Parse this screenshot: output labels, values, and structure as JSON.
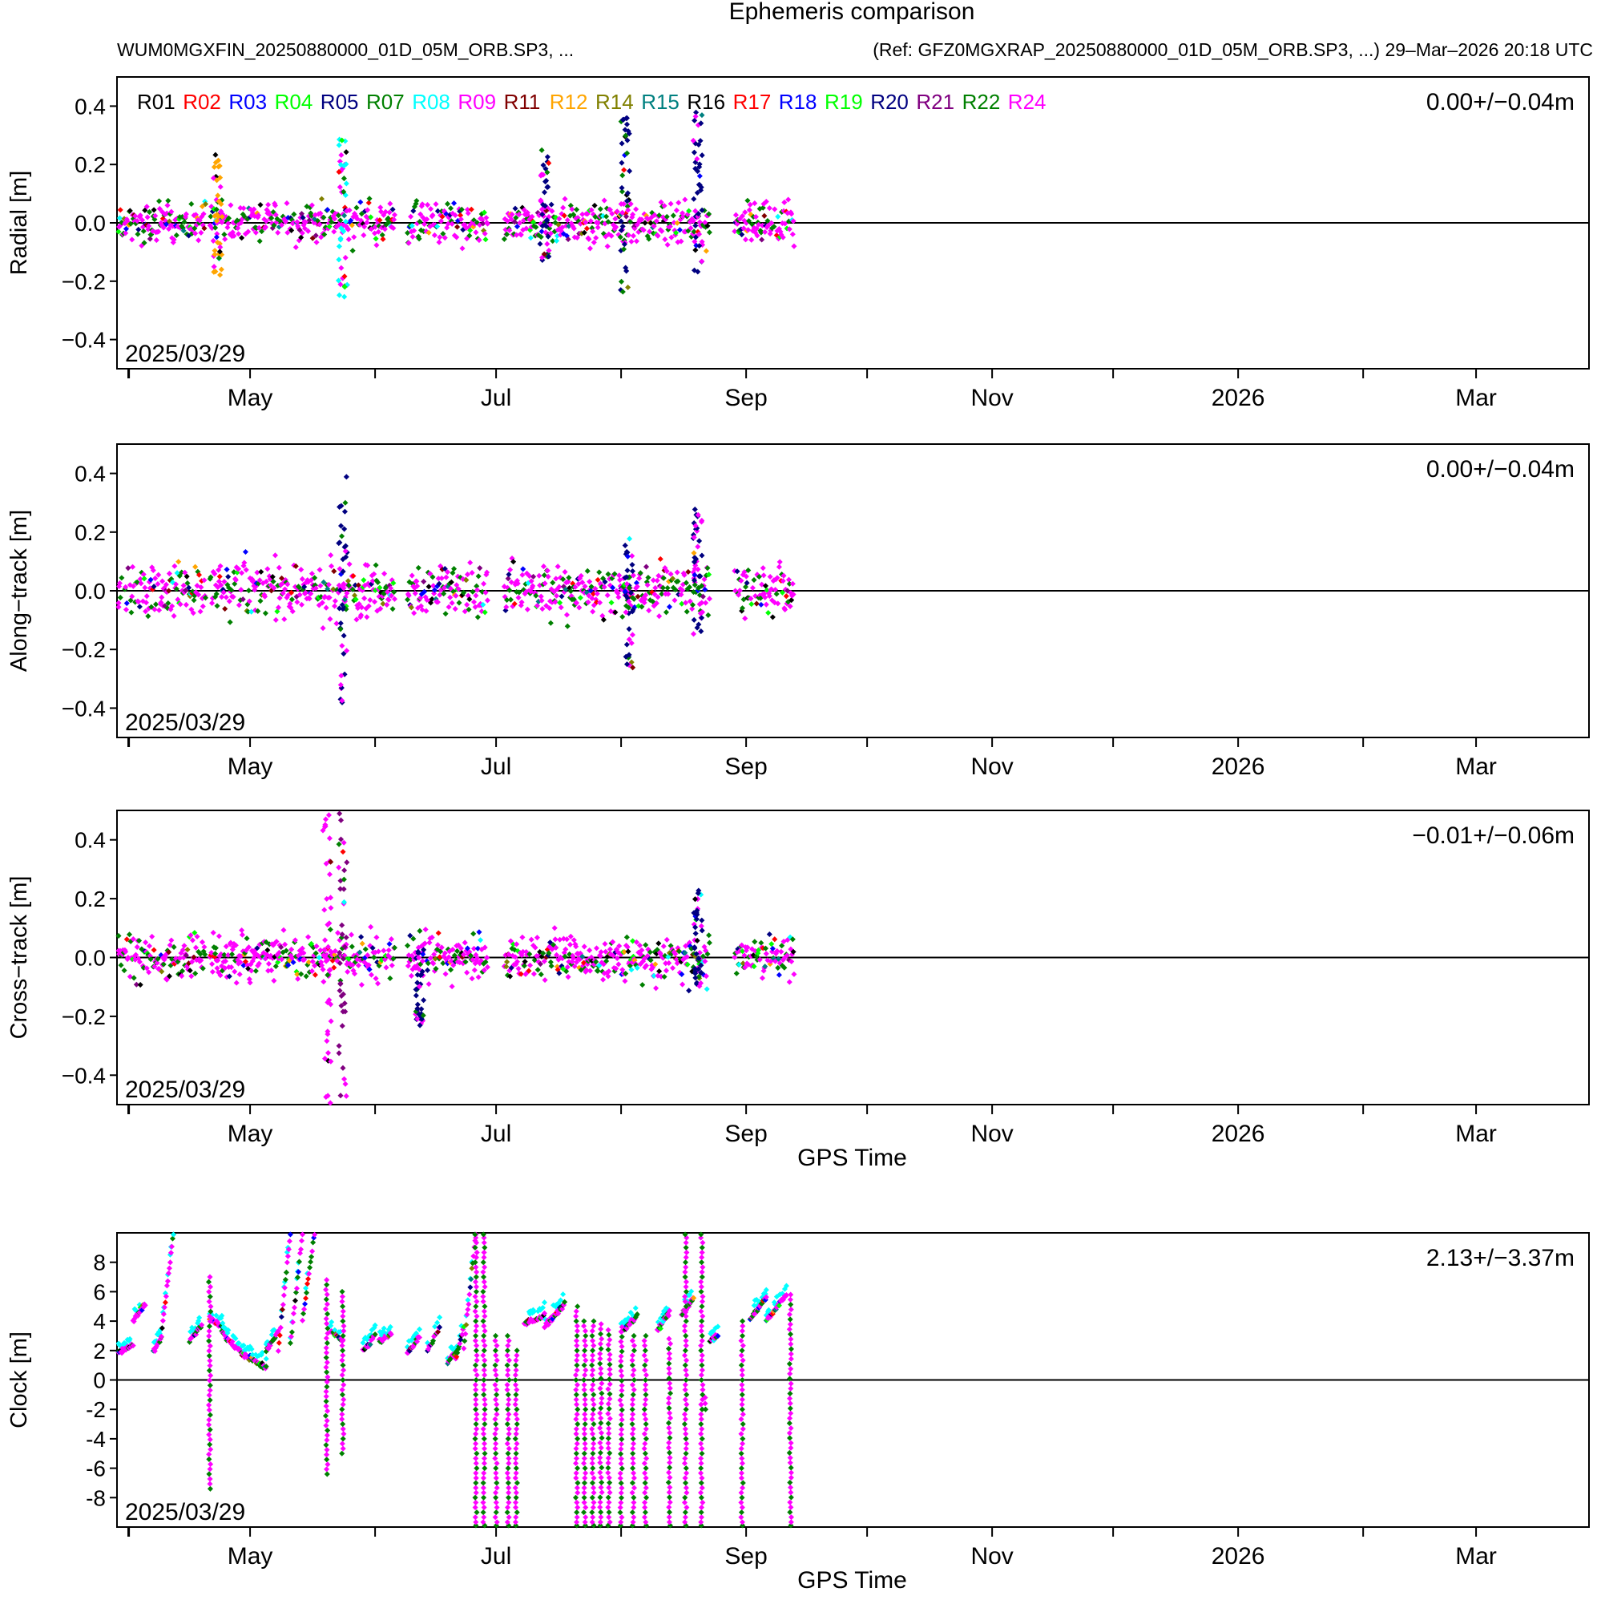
{
  "title": "Ephemeris comparison",
  "header": {
    "left": "WUM0MGXFIN_20250880000_01D_05M_ORB.SP3, ...",
    "right": "(Ref: GFZ0MGXRAP_20250880000_01D_05M_ORB.SP3, ...) 29–Mar–2026 20:18 UTC"
  },
  "legend": [
    {
      "name": "R01",
      "color": "#000000"
    },
    {
      "name": "R02",
      "color": "#ff0000"
    },
    {
      "name": "R03",
      "color": "#0000ff"
    },
    {
      "name": "R04",
      "color": "#00ff00"
    },
    {
      "name": "R05",
      "color": "#000080"
    },
    {
      "name": "R07",
      "color": "#008000"
    },
    {
      "name": "R08",
      "color": "#00ffff"
    },
    {
      "name": "R09",
      "color": "#ff00ff"
    },
    {
      "name": "R11",
      "color": "#800000"
    },
    {
      "name": "R12",
      "color": "#ffa500"
    },
    {
      "name": "R14",
      "color": "#808000"
    },
    {
      "name": "R15",
      "color": "#008080"
    },
    {
      "name": "R16",
      "color": "#000000"
    },
    {
      "name": "R17",
      "color": "#ff0000"
    },
    {
      "name": "R18",
      "color": "#0000ff"
    },
    {
      "name": "R19",
      "color": "#00ff00"
    },
    {
      "name": "R20",
      "color": "#000080"
    },
    {
      "name": "R21",
      "color": "#800080"
    },
    {
      "name": "R22",
      "color": "#008000"
    },
    {
      "name": "R24",
      "color": "#ff00ff"
    }
  ],
  "chart_data": [
    {
      "type": "scatter",
      "ylabel": "Radial [m]",
      "xlabel": "",
      "ylim": [
        -0.5,
        0.5
      ],
      "yticks": [
        0.4,
        0.2,
        0.0,
        -0.2,
        -0.4
      ],
      "ytick_labels": [
        "0.4",
        "0.2",
        "0.0",
        "−0.2",
        "−0.4"
      ],
      "xlim": [
        "2025-03-29",
        "2026-03-29"
      ],
      "xticks": [
        "May",
        "Jul",
        "Sep",
        "Nov",
        "2026",
        "Mar"
      ],
      "date_label": "2025/03/29",
      "stats": "0.00+/−0.04m",
      "data_end": "2025-09-13",
      "spread": 0.05,
      "gaps": [
        [
          "2025-04-20",
          "2025-04-21"
        ],
        [
          "2025-06-06",
          "2025-06-09"
        ],
        [
          "2025-06-29",
          "2025-07-03"
        ],
        [
          "2025-08-23",
          "2025-08-29"
        ]
      ],
      "bursts": [
        {
          "date": "2025-04-23",
          "min": -0.18,
          "max": 0.24,
          "color": "#ffa500"
        },
        {
          "date": "2025-05-24",
          "min": -0.27,
          "max": 0.3,
          "color": "#00ffff"
        },
        {
          "date": "2025-07-13",
          "min": -0.15,
          "max": 0.25,
          "color": "#000080"
        },
        {
          "date": "2025-08-02",
          "min": -0.24,
          "max": 0.36,
          "color": "#000080"
        },
        {
          "date": "2025-08-20",
          "min": -0.2,
          "max": 0.38,
          "color": "#000080"
        }
      ]
    },
    {
      "type": "scatter",
      "ylabel": "Along−track [m]",
      "xlabel": "",
      "ylim": [
        -0.5,
        0.5
      ],
      "yticks": [
        0.4,
        0.2,
        0.0,
        -0.2,
        -0.4
      ],
      "ytick_labels": [
        "0.4",
        "0.2",
        "0.0",
        "−0.2",
        "−0.4"
      ],
      "xlim": [
        "2025-03-29",
        "2026-03-29"
      ],
      "xticks": [
        "May",
        "Jul",
        "Sep",
        "Nov",
        "2026",
        "Mar"
      ],
      "date_label": "2025/03/29",
      "stats": "0.00+/−0.04m",
      "data_end": "2025-09-13",
      "spread": 0.06,
      "gaps": [
        [
          "2025-04-20",
          "2025-04-21"
        ],
        [
          "2025-06-06",
          "2025-06-09"
        ],
        [
          "2025-06-29",
          "2025-07-03"
        ],
        [
          "2025-08-23",
          "2025-08-29"
        ]
      ],
      "bursts": [
        {
          "date": "2025-05-24",
          "min": -0.42,
          "max": 0.42,
          "color": "#000080"
        },
        {
          "date": "2025-08-03",
          "min": -0.28,
          "max": 0.18,
          "color": "#000080"
        },
        {
          "date": "2025-08-20",
          "min": -0.15,
          "max": 0.28,
          "color": "#000080"
        }
      ]
    },
    {
      "type": "scatter",
      "ylabel": "Cross−track [m]",
      "xlabel": "GPS Time",
      "ylim": [
        -0.5,
        0.5
      ],
      "yticks": [
        0.4,
        0.2,
        0.0,
        -0.2,
        -0.4
      ],
      "ytick_labels": [
        "0.4",
        "0.2",
        "0.0",
        "−0.2",
        "−0.4"
      ],
      "xlim": [
        "2025-03-29",
        "2026-03-29"
      ],
      "xticks": [
        "May",
        "Jul",
        "Sep",
        "Nov",
        "2026",
        "Mar"
      ],
      "date_label": "2025/03/29",
      "stats": "−0.01+/−0.06m",
      "data_end": "2025-09-13",
      "spread": 0.05,
      "gaps": [
        [
          "2025-04-20",
          "2025-04-21"
        ],
        [
          "2025-06-06",
          "2025-06-09"
        ],
        [
          "2025-06-29",
          "2025-07-03"
        ],
        [
          "2025-08-23",
          "2025-08-29"
        ]
      ],
      "bursts": [
        {
          "date": "2025-05-20",
          "min": -0.5,
          "max": 0.5,
          "color": "#ff00ff"
        },
        {
          "date": "2025-05-24",
          "min": -0.5,
          "max": 0.5,
          "color": "#800080"
        },
        {
          "date": "2025-06-12",
          "min": -0.25,
          "max": 0.05,
          "color": "#000080"
        },
        {
          "date": "2025-08-20",
          "min": -0.1,
          "max": 0.23,
          "color": "#000080"
        }
      ]
    },
    {
      "type": "scatter",
      "ylabel": "Clock [m]",
      "xlabel": "GPS Time",
      "ylim": [
        -10,
        10
      ],
      "yticks": [
        8,
        6,
        4,
        2,
        0,
        -2,
        -4,
        -6,
        -8
      ],
      "ytick_labels": [
        "8",
        "6",
        "4",
        "2",
        "0",
        "-2",
        "-4",
        "-6",
        "-8"
      ],
      "xlim": [
        "2025-03-29",
        "2026-03-29"
      ],
      "xticks": [
        "May",
        "Jul",
        "Sep",
        "Nov",
        "2026",
        "Mar"
      ],
      "date_label": "2025/03/29",
      "stats": "2.13+/−3.37m",
      "data_end": "2025-09-13",
      "segments": [
        {
          "from": "2025-03-29",
          "to": "2025-04-02",
          "start": 1.8,
          "end": 2.4
        },
        {
          "from": "2025-04-02",
          "to": "2025-04-05",
          "start": 4.0,
          "end": 5.2
        },
        {
          "from": "2025-04-07",
          "to": "2025-04-09",
          "start": 2.0,
          "end": 2.8
        },
        {
          "from": "2025-04-09",
          "to": "2025-04-12",
          "start": 3.0,
          "end": 10.0
        },
        {
          "from": "2025-04-16",
          "to": "2025-04-19",
          "start": 2.6,
          "end": 3.8
        },
        {
          "from": "2025-04-21",
          "to": "2025-04-24",
          "start": 4.2,
          "end": 3.6
        },
        {
          "from": "2025-04-24",
          "to": "2025-04-29",
          "start": 3.2,
          "end": 1.8
        },
        {
          "from": "2025-04-29",
          "to": "2025-05-05",
          "start": 1.8,
          "end": 0.8
        },
        {
          "from": "2025-05-05",
          "to": "2025-05-08",
          "start": 2.0,
          "end": 3.2
        },
        {
          "from": "2025-05-08",
          "to": "2025-05-11",
          "start": 2.0,
          "end": 10.0
        },
        {
          "from": "2025-05-11",
          "to": "2025-05-14",
          "start": 2.4,
          "end": 10.0
        },
        {
          "from": "2025-05-14",
          "to": "2025-05-17",
          "start": 4.0,
          "end": 10.0
        },
        {
          "from": "2025-05-21",
          "to": "2025-05-24",
          "start": 3.4,
          "end": 2.6
        },
        {
          "from": "2025-05-29",
          "to": "2025-06-01",
          "start": 2.0,
          "end": 3.0
        },
        {
          "from": "2025-06-02",
          "to": "2025-06-05",
          "start": 2.6,
          "end": 3.2
        },
        {
          "from": "2025-06-09",
          "to": "2025-06-12",
          "start": 1.8,
          "end": 3.0
        },
        {
          "from": "2025-06-14",
          "to": "2025-06-17",
          "start": 2.0,
          "end": 3.6
        },
        {
          "from": "2025-06-19",
          "to": "2025-06-21",
          "start": 1.2,
          "end": 1.8
        },
        {
          "from": "2025-06-21",
          "to": "2025-06-23",
          "start": 1.4,
          "end": 3.6
        },
        {
          "from": "2025-06-23",
          "to": "2025-06-26",
          "start": 2.2,
          "end": 10.0
        },
        {
          "from": "2025-07-08",
          "to": "2025-07-13",
          "start": 3.8,
          "end": 4.4
        },
        {
          "from": "2025-07-13",
          "to": "2025-07-18",
          "start": 3.6,
          "end": 5.2
        },
        {
          "from": "2025-08-01",
          "to": "2025-08-05",
          "start": 3.2,
          "end": 4.4
        },
        {
          "from": "2025-08-10",
          "to": "2025-08-13",
          "start": 3.4,
          "end": 4.6
        },
        {
          "from": "2025-08-16",
          "to": "2025-08-19",
          "start": 4.4,
          "end": 5.6
        },
        {
          "from": "2025-08-23",
          "to": "2025-08-25",
          "start": 2.6,
          "end": 3.0
        },
        {
          "from": "2025-09-02",
          "to": "2025-09-06",
          "start": 4.2,
          "end": 5.6
        },
        {
          "from": "2025-09-06",
          "to": "2025-09-11",
          "start": 4.0,
          "end": 5.8
        }
      ],
      "drops": [
        {
          "date": "2025-04-21",
          "min": -7.4,
          "max": 7.0
        },
        {
          "date": "2025-05-20",
          "min": -6.4,
          "max": 6.8
        },
        {
          "date": "2025-05-24",
          "min": -5.0,
          "max": 6.0
        },
        {
          "date": "2025-06-26",
          "min": -10.0,
          "max": 10.0
        },
        {
          "date": "2025-06-28",
          "min": -10.0,
          "max": 10.0
        },
        {
          "date": "2025-07-01",
          "min": -10.0,
          "max": 3.0
        },
        {
          "date": "2025-07-04",
          "min": -10.0,
          "max": 3.0
        },
        {
          "date": "2025-07-06",
          "min": -10.0,
          "max": 2.0
        },
        {
          "date": "2025-07-21",
          "min": -10.0,
          "max": 5.0
        },
        {
          "date": "2025-07-23",
          "min": -10.0,
          "max": 4.0
        },
        {
          "date": "2025-07-25",
          "min": -10.0,
          "max": 4.0
        },
        {
          "date": "2025-07-27",
          "min": -10.0,
          "max": 3.8
        },
        {
          "date": "2025-07-29",
          "min": -10.0,
          "max": 3.4
        },
        {
          "date": "2025-08-01",
          "min": -10.0,
          "max": 3.6
        },
        {
          "date": "2025-08-04",
          "min": -10.0,
          "max": 3.0
        },
        {
          "date": "2025-08-07",
          "min": -10.0,
          "max": 3.0
        },
        {
          "date": "2025-08-13",
          "min": -10.0,
          "max": 2.8
        },
        {
          "date": "2025-08-17",
          "min": -10.0,
          "max": 10.0
        },
        {
          "date": "2025-08-21",
          "min": -10.0,
          "max": 10.0
        },
        {
          "date": "2025-08-22",
          "min": -2.0,
          "max": -1.2
        },
        {
          "date": "2025-08-31",
          "min": -10.0,
          "max": 4.0
        },
        {
          "date": "2025-09-12",
          "min": -10.0,
          "max": 5.8
        }
      ]
    }
  ]
}
